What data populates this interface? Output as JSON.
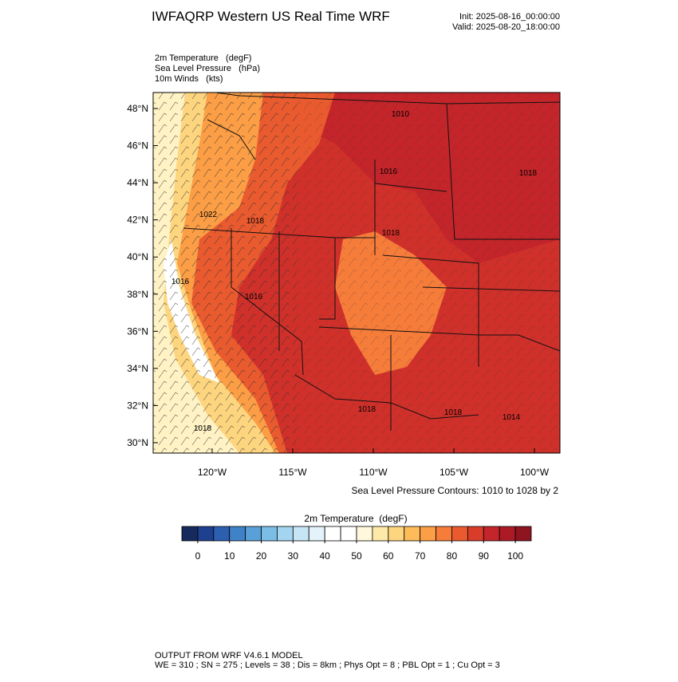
{
  "header": {
    "title": "IWFAQRP Western US Real Time WRF",
    "init": "Init: 2025-08-16_00:00:00",
    "valid": "Valid: 2025-08-20_18:00:00"
  },
  "fields": [
    "2m Temperature   (degF)",
    "Sea Level Pressure   (hPa)",
    "10m Winds   (kts)"
  ],
  "map": {
    "xlim": [
      -123.66,
      -98.42
    ],
    "ylim": [
      29.44,
      48.86
    ],
    "xticks": [
      {
        "value": -120,
        "label": "120°W"
      },
      {
        "value": -115,
        "label": "115°W"
      },
      {
        "value": -110,
        "label": "110°W"
      },
      {
        "value": -105,
        "label": "105°W"
      },
      {
        "value": -100,
        "label": "100°W"
      }
    ],
    "yticks": [
      {
        "value": 30,
        "label": "30°N"
      },
      {
        "value": 32,
        "label": "32°N"
      },
      {
        "value": 34,
        "label": "34°N"
      },
      {
        "value": 36,
        "label": "36°N"
      },
      {
        "value": 38,
        "label": "38°N"
      },
      {
        "value": 40,
        "label": "40°N"
      },
      {
        "value": 42,
        "label": "42°N"
      },
      {
        "value": 44,
        "label": "44°N"
      },
      {
        "value": 46,
        "label": "46°N"
      },
      {
        "value": 48,
        "label": "48°N"
      }
    ],
    "contour_labels": [
      "1010",
      "1018",
      "1016",
      "1022",
      "1018",
      "1018",
      "1016",
      "1016",
      "1018",
      "1018",
      "1018",
      "1014"
    ]
  },
  "contour_note": "Sea Level Pressure Contours: 1010 to 1028 by 2",
  "colorbar": {
    "title": "2m Temperature  (degF)",
    "range": [
      -5,
      105
    ],
    "ticks": [
      0,
      10,
      20,
      30,
      40,
      50,
      60,
      70,
      80,
      90,
      100
    ],
    "colors": [
      "#162a5e",
      "#1f3f8f",
      "#2c5fb0",
      "#3f82c8",
      "#5aa0d8",
      "#7cbde6",
      "#a3d5f0",
      "#c6e6f6",
      "#e4f3fb",
      "#ffffff",
      "#ffffff",
      "#fff8dc",
      "#feeaa8",
      "#fed57f",
      "#fdbb5a",
      "#fc9e45",
      "#f67c3a",
      "#ea5a2f",
      "#d93c29",
      "#c4252a",
      "#ac1a26",
      "#8e1420"
    ]
  },
  "footer": [
    "OUTPUT FROM WRF V4.6.1 MODEL",
    "WE = 310 ; SN = 275 ; Levels = 38 ; Dis = 8km ; Phys Opt = 8 ; PBL Opt = 1 ; Cu Opt = 3"
  ]
}
